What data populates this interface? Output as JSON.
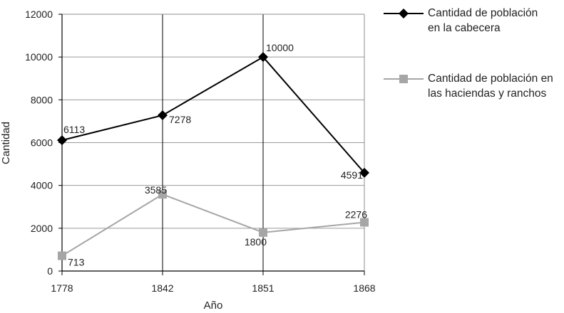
{
  "chart_data": {
    "type": "line",
    "categories": [
      "1778",
      "1842",
      "1851",
      "1868"
    ],
    "series": [
      {
        "name": "Cantidad de población en la cabecera",
        "name_lines": [
          "Cantidad de población",
          "en la cabecera"
        ],
        "values": [
          6113,
          7278,
          10000,
          4591
        ],
        "labels": [
          "6113",
          "7278",
          "10000",
          "4591"
        ],
        "color": "#000000",
        "marker": "diamond"
      },
      {
        "name": "Cantidad de población en las haciendas y ranchos",
        "name_lines": [
          "Cantidad de población en",
          "las haciendas y ranchos"
        ],
        "values": [
          713,
          3585,
          1800,
          2276
        ],
        "labels": [
          "713",
          "3585",
          "1800",
          "2276"
        ],
        "color": "#a6a6a6",
        "marker": "square"
      }
    ],
    "xlabel": "Año",
    "ylabel": "Cantidad",
    "ylim": [
      0,
      12000
    ],
    "yticks": [
      "0",
      "2000",
      "4000",
      "6000",
      "8000",
      "10000",
      "12000"
    ],
    "grid": true,
    "legend_position": "right"
  }
}
